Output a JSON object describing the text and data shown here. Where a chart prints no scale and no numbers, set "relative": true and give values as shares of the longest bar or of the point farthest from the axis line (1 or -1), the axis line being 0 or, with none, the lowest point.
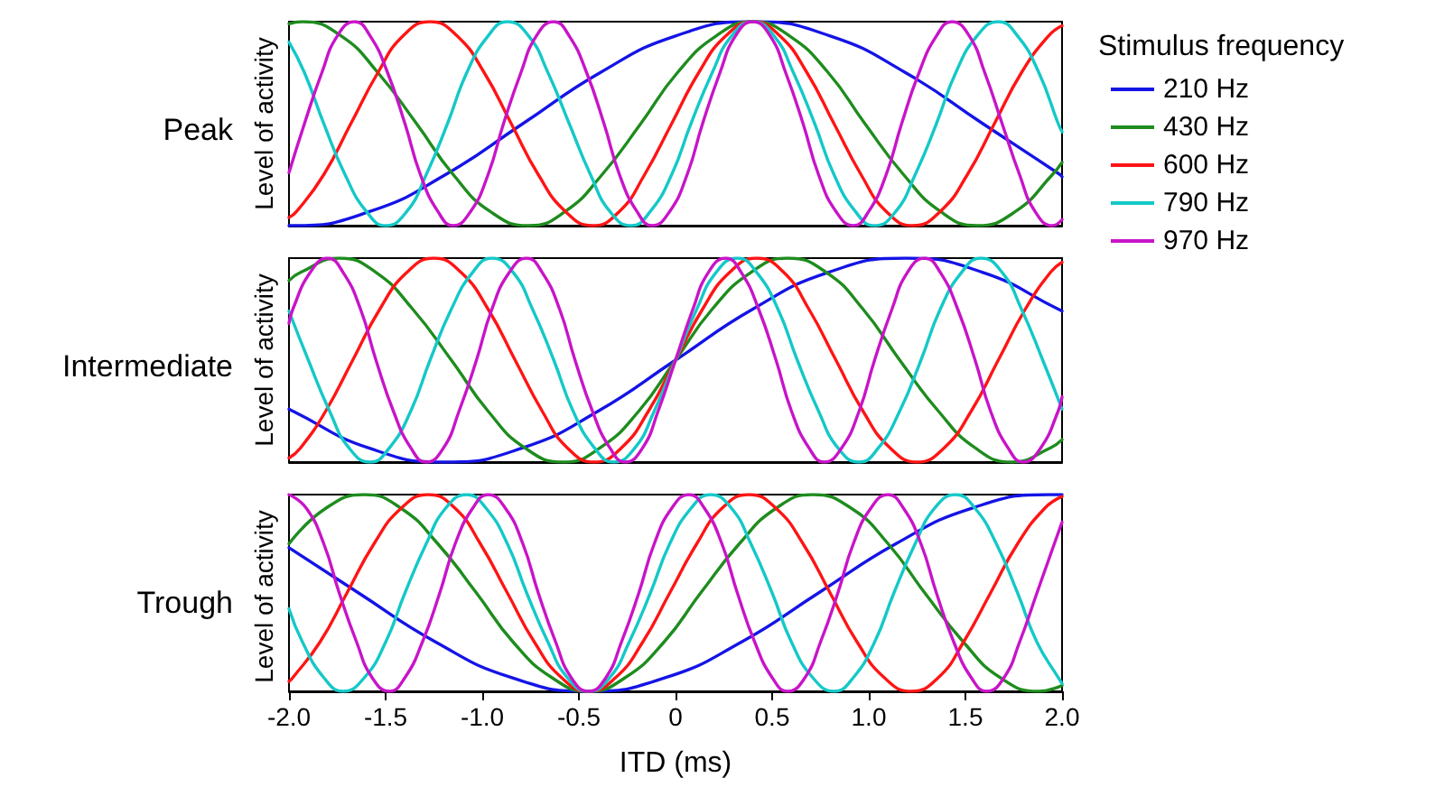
{
  "chart_data": [
    {
      "type": "line",
      "title": "Peak",
      "ylabel": "Level of activity",
      "relative": true,
      "xlim": [
        -2,
        2
      ],
      "tick_labels": false,
      "marker": "none",
      "line_style": "solid",
      "legend": "right",
      "legend_title": "Stimulus frequency",
      "series": [
        {
          "name": "210 Hz",
          "color": "#1414e6",
          "x": [
            -2,
            -1.98,
            -1.58,
            -1.19,
            -0.79,
            -0.39,
            0,
            0.4,
            0.8,
            1.19,
            1.59,
            1.99,
            2
          ],
          "values": [
            0,
            0,
            0.07,
            0.25,
            0.5,
            0.75,
            0.93,
            1,
            0.93,
            0.75,
            0.5,
            0.25,
            0.24
          ]
        },
        {
          "name": "430 Hz",
          "color": "#1e8c1e",
          "x": [
            -2,
            -1.93,
            -1.73,
            -1.54,
            -1.34,
            -1.15,
            -0.96,
            -0.76,
            -0.57,
            -0.38,
            -0.18,
            0.01,
            0.21,
            0.4,
            0.59,
            0.79,
            0.98,
            1.18,
            1.37,
            1.56,
            1.76,
            1.95,
            2
          ],
          "values": [
            0.99,
            1,
            0.93,
            0.75,
            0.5,
            0.25,
            0.07,
            0,
            0.07,
            0.25,
            0.5,
            0.75,
            0.93,
            1,
            0.93,
            0.75,
            0.5,
            0.25,
            0.07,
            0,
            0.07,
            0.25,
            0.31
          ]
        },
        {
          "name": "600 Hz",
          "color": "#ff1414",
          "x": [
            -2,
            -1.96,
            -1.82,
            -1.68,
            -1.54,
            -1.41,
            -1.27,
            -1.13,
            -0.99,
            -0.85,
            -0.71,
            -0.57,
            -0.43,
            -0.29,
            -0.16,
            -0.02,
            0.12,
            0.26,
            0.4,
            0.54,
            0.68,
            0.82,
            0.96,
            1.09,
            1.23,
            1.37,
            1.51,
            1.65,
            1.79,
            1.93,
            2
          ],
          "values": [
            0.04,
            0.07,
            0.25,
            0.5,
            0.75,
            0.93,
            1,
            0.93,
            0.75,
            0.5,
            0.25,
            0.07,
            0,
            0.07,
            0.25,
            0.5,
            0.75,
            0.93,
            1,
            0.93,
            0.75,
            0.5,
            0.25,
            0.07,
            0,
            0.07,
            0.25,
            0.5,
            0.75,
            0.93,
            0.98
          ]
        },
        {
          "name": "790 Hz",
          "color": "#14c8c8",
          "x": [
            -2,
            -1.92,
            -1.82,
            -1.71,
            -1.6,
            -1.5,
            -1.39,
            -1.29,
            -1.18,
            -1.08,
            -0.97,
            -0.87,
            -0.76,
            -0.66,
            -0.55,
            -0.44,
            -0.34,
            -0.23,
            -0.13,
            -0.02,
            0.08,
            0.19,
            0.29,
            0.4,
            0.51,
            0.61,
            0.72,
            0.82,
            0.93,
            1.03,
            1.14,
            1.24,
            1.35,
            1.45,
            1.56,
            1.67,
            1.77,
            1.88,
            1.98,
            2
          ],
          "values": [
            0.9,
            0.75,
            0.5,
            0.25,
            0.07,
            0,
            0.07,
            0.25,
            0.5,
            0.75,
            0.93,
            1,
            0.93,
            0.75,
            0.5,
            0.25,
            0.07,
            0,
            0.07,
            0.25,
            0.5,
            0.75,
            0.93,
            1,
            0.93,
            0.75,
            0.5,
            0.25,
            0.07,
            0,
            0.07,
            0.25,
            0.5,
            0.75,
            0.93,
            1,
            0.93,
            0.75,
            0.5,
            0.46
          ]
        },
        {
          "name": "970 Hz",
          "color": "#c814c8",
          "x": [
            -2,
            -1.92,
            -1.83,
            -1.75,
            -1.66,
            -1.58,
            -1.49,
            -1.4,
            -1.32,
            -1.23,
            -1.15,
            -1.06,
            -0.97,
            -0.89,
            -0.8,
            -0.72,
            -0.63,
            -0.55,
            -0.46,
            -0.37,
            -0.29,
            -0.2,
            -0.12,
            -0.03,
            0.06,
            0.14,
            0.23,
            0.31,
            0.4,
            0.49,
            0.57,
            0.66,
            0.74,
            0.83,
            0.92,
            1,
            1.09,
            1.17,
            1.26,
            1.35,
            1.43,
            1.52,
            1.6,
            1.69,
            1.78,
            1.86,
            1.95,
            2
          ],
          "values": [
            0.26,
            0.5,
            0.75,
            0.93,
            1,
            0.93,
            0.75,
            0.5,
            0.25,
            0.07,
            0,
            0.07,
            0.25,
            0.5,
            0.75,
            0.93,
            1,
            0.93,
            0.75,
            0.5,
            0.25,
            0.07,
            0,
            0.07,
            0.25,
            0.5,
            0.75,
            0.93,
            1,
            0.93,
            0.75,
            0.5,
            0.25,
            0.07,
            0,
            0.07,
            0.25,
            0.5,
            0.75,
            0.93,
            1,
            0.93,
            0.75,
            0.5,
            0.25,
            0.07,
            0,
            0.03
          ]
        }
      ]
    },
    {
      "type": "line",
      "title": "Intermediate",
      "ylabel": "Level of activity",
      "relative": true,
      "xlim": [
        -2,
        2
      ],
      "tick_labels": false,
      "marker": "none",
      "line_style": "solid",
      "series": [
        {
          "color": "#1414e6",
          "x": [
            -2,
            -1.98,
            -1.59,
            -1.19,
            -0.79,
            -0.4,
            0,
            0.4,
            0.79,
            1.19,
            1.59,
            1.98,
            2
          ],
          "values": [
            0.26,
            0.25,
            0.07,
            0,
            0.07,
            0.25,
            0.5,
            0.75,
            0.93,
            1,
            0.93,
            0.75,
            0.74
          ]
        },
        {
          "color": "#1e8c1e",
          "x": [
            -2,
            -1.94,
            -1.74,
            -1.55,
            -1.36,
            -1.16,
            -0.97,
            -0.78,
            -0.58,
            -0.39,
            -0.19,
            0,
            0.19,
            0.39,
            0.58,
            0.78,
            0.97,
            1.16,
            1.36,
            1.55,
            1.74,
            1.94,
            2
          ],
          "values": [
            0.89,
            0.93,
            1,
            0.93,
            0.75,
            0.5,
            0.25,
            0.07,
            0,
            0.07,
            0.25,
            0.5,
            0.75,
            0.93,
            1,
            0.93,
            0.75,
            0.5,
            0.25,
            0.07,
            0,
            0.07,
            0.11
          ]
        },
        {
          "color": "#ff1414",
          "x": [
            -2,
            -1.94,
            -1.81,
            -1.67,
            -1.53,
            -1.39,
            -1.25,
            -1.11,
            -0.97,
            -0.83,
            -0.69,
            -0.56,
            -0.42,
            -0.28,
            -0.14,
            0,
            0.14,
            0.28,
            0.42,
            0.56,
            0.69,
            0.83,
            0.97,
            1.11,
            1.25,
            1.39,
            1.53,
            1.67,
            1.81,
            1.94,
            2
          ],
          "values": [
            0.02,
            0.07,
            0.25,
            0.5,
            0.75,
            0.93,
            1,
            0.93,
            0.75,
            0.5,
            0.25,
            0.07,
            0,
            0.07,
            0.25,
            0.5,
            0.75,
            0.93,
            1,
            0.93,
            0.75,
            0.5,
            0.25,
            0.07,
            0,
            0.07,
            0.25,
            0.5,
            0.75,
            0.93,
            0.98
          ]
        },
        {
          "color": "#14c8c8",
          "x": [
            -2,
            -1.9,
            -1.79,
            -1.69,
            -1.58,
            -1.48,
            -1.37,
            -1.27,
            -1.16,
            -1.05,
            -0.95,
            -0.84,
            -0.74,
            -0.63,
            -0.53,
            -0.42,
            -0.32,
            -0.21,
            -0.11,
            0,
            0.11,
            0.21,
            0.32,
            0.42,
            0.53,
            0.63,
            0.74,
            0.84,
            0.95,
            1.05,
            1.16,
            1.27,
            1.37,
            1.48,
            1.58,
            1.69,
            1.79,
            1.9,
            2
          ],
          "values": [
            0.74,
            0.5,
            0.25,
            0.07,
            0,
            0.07,
            0.25,
            0.5,
            0.75,
            0.93,
            1,
            0.93,
            0.75,
            0.5,
            0.25,
            0.07,
            0,
            0.07,
            0.25,
            0.5,
            0.75,
            0.93,
            1,
            0.93,
            0.75,
            0.5,
            0.25,
            0.07,
            0,
            0.07,
            0.25,
            0.5,
            0.75,
            0.93,
            1,
            0.93,
            0.75,
            0.5,
            0.26
          ]
        },
        {
          "color": "#c814c8",
          "x": [
            -2,
            -1.98,
            -1.89,
            -1.8,
            -1.72,
            -1.63,
            -1.55,
            -1.46,
            -1.37,
            -1.29,
            -1.2,
            -1.12,
            -1.03,
            -0.95,
            -0.86,
            -0.77,
            -0.69,
            -0.6,
            -0.52,
            -0.43,
            -0.34,
            -0.26,
            -0.17,
            -0.09,
            0,
            0.09,
            0.17,
            0.26,
            0.34,
            0.43,
            0.52,
            0.6,
            0.69,
            0.77,
            0.86,
            0.95,
            1.03,
            1.12,
            1.2,
            1.29,
            1.37,
            1.46,
            1.55,
            1.63,
            1.72,
            1.8,
            1.89,
            1.98,
            2
          ],
          "values": [
            0.68,
            0.75,
            0.93,
            1,
            0.93,
            0.75,
            0.5,
            0.25,
            0.07,
            0,
            0.07,
            0.25,
            0.5,
            0.75,
            0.93,
            1,
            0.93,
            0.75,
            0.5,
            0.25,
            0.07,
            0,
            0.07,
            0.25,
            0.5,
            0.75,
            0.93,
            1,
            0.93,
            0.75,
            0.5,
            0.25,
            0.07,
            0,
            0.07,
            0.25,
            0.5,
            0.75,
            0.93,
            1,
            0.93,
            0.75,
            0.5,
            0.25,
            0.07,
            0,
            0.07,
            0.25,
            0.32
          ]
        }
      ]
    },
    {
      "type": "line",
      "title": "Trough",
      "ylabel": "Level of activity",
      "xlabel": "ITD (ms)",
      "relative": true,
      "xlim": [
        -2,
        2
      ],
      "xticks": [
        {
          "value": -2,
          "label": "-2.0"
        },
        -1.5,
        {
          "value": -1,
          "label": "-1.0"
        },
        -0.5,
        0,
        0.5,
        {
          "value": 1,
          "label": "1.0"
        },
        1.5,
        {
          "value": 2,
          "label": "2.0"
        }
      ],
      "tick_labels": "x",
      "marker": "none",
      "line_style": "solid",
      "series": [
        {
          "color": "#1414e6",
          "x": [
            -2,
            -1.64,
            -1.24,
            -0.85,
            -0.45,
            -0.05,
            0.34,
            0.74,
            1.14,
            1.53,
            1.93,
            2
          ],
          "values": [
            0.73,
            0.5,
            0.25,
            0.07,
            0,
            0.07,
            0.25,
            0.5,
            0.75,
            0.93,
            1,
            1
          ]
        },
        {
          "color": "#1e8c1e",
          "x": [
            -2,
            -1.81,
            -1.61,
            -1.42,
            -1.23,
            -1.03,
            -0.84,
            -0.64,
            -0.45,
            -0.26,
            -0.06,
            0.13,
            0.33,
            0.52,
            0.71,
            0.91,
            1.1,
            1.29,
            1.49,
            1.68,
            1.88,
            2
          ],
          "values": [
            0.75,
            0.93,
            1,
            0.93,
            0.75,
            0.5,
            0.25,
            0.07,
            0,
            0.07,
            0.25,
            0.5,
            0.75,
            0.93,
            1,
            0.93,
            0.75,
            0.5,
            0.25,
            0.07,
            0,
            0.03
          ]
        },
        {
          "color": "#ff1414",
          "x": [
            -2,
            -1.98,
            -1.84,
            -1.7,
            -1.56,
            -1.42,
            -1.28,
            -1.14,
            -1.01,
            -0.87,
            -0.73,
            -0.59,
            -0.45,
            -0.31,
            -0.17,
            -0.03,
            0.11,
            0.24,
            0.38,
            0.52,
            0.66,
            0.8,
            0.94,
            1.08,
            1.22,
            1.36,
            1.49,
            1.63,
            1.77,
            1.91,
            2
          ],
          "values": [
            0.05,
            0.07,
            0.25,
            0.5,
            0.75,
            0.93,
            1,
            0.93,
            0.75,
            0.5,
            0.25,
            0.07,
            0,
            0.07,
            0.25,
            0.5,
            0.75,
            0.93,
            1,
            0.93,
            0.75,
            0.5,
            0.25,
            0.07,
            0,
            0.07,
            0.25,
            0.5,
            0.75,
            0.93,
            0.99
          ]
        },
        {
          "color": "#14c8c8",
          "x": [
            -2,
            -1.93,
            -1.82,
            -1.72,
            -1.61,
            -1.5,
            -1.4,
            -1.29,
            -1.19,
            -1.08,
            -0.98,
            -0.87,
            -0.77,
            -0.66,
            -0.56,
            -0.45,
            -0.34,
            -0.24,
            -0.13,
            -0.03,
            0.08,
            0.18,
            0.29,
            0.39,
            0.5,
            0.6,
            0.71,
            0.82,
            0.92,
            1.03,
            1.13,
            1.24,
            1.34,
            1.45,
            1.55,
            1.66,
            1.77,
            1.87,
            1.98,
            2
          ],
          "values": [
            0.42,
            0.25,
            0.07,
            0,
            0.07,
            0.25,
            0.5,
            0.75,
            0.93,
            1,
            0.93,
            0.75,
            0.5,
            0.25,
            0.07,
            0,
            0.07,
            0.25,
            0.5,
            0.75,
            0.93,
            1,
            0.93,
            0.75,
            0.5,
            0.25,
            0.07,
            0,
            0.07,
            0.25,
            0.5,
            0.75,
            0.93,
            1,
            0.93,
            0.75,
            0.5,
            0.25,
            0.07,
            0.04
          ]
        },
        {
          "color": "#c814c8",
          "x": [
            -2,
            -1.91,
            -1.82,
            -1.74,
            -1.65,
            -1.57,
            -1.48,
            -1.4,
            -1.31,
            -1.22,
            -1.14,
            -1.05,
            -0.97,
            -0.88,
            -0.79,
            -0.71,
            -0.62,
            -0.54,
            -0.45,
            -0.36,
            -0.28,
            -0.19,
            -0.11,
            -0.02,
            0.07,
            0.15,
            0.24,
            0.32,
            0.41,
            0.5,
            0.58,
            0.67,
            0.75,
            0.84,
            0.92,
            1.01,
            1.1,
            1.18,
            1.27,
            1.35,
            1.44,
            1.53,
            1.61,
            1.7,
            1.78,
            1.87,
            1.96,
            2
          ],
          "values": [
            1,
            0.93,
            0.75,
            0.5,
            0.25,
            0.07,
            0,
            0.07,
            0.25,
            0.5,
            0.75,
            0.93,
            1,
            0.93,
            0.75,
            0.5,
            0.25,
            0.07,
            0,
            0.07,
            0.25,
            0.5,
            0.75,
            0.93,
            1,
            0.93,
            0.75,
            0.5,
            0.25,
            0.07,
            0,
            0.07,
            0.25,
            0.5,
            0.75,
            0.93,
            1,
            0.93,
            0.75,
            0.5,
            0.25,
            0.07,
            0,
            0.07,
            0.25,
            0.5,
            0.75,
            0.86
          ]
        }
      ]
    }
  ]
}
